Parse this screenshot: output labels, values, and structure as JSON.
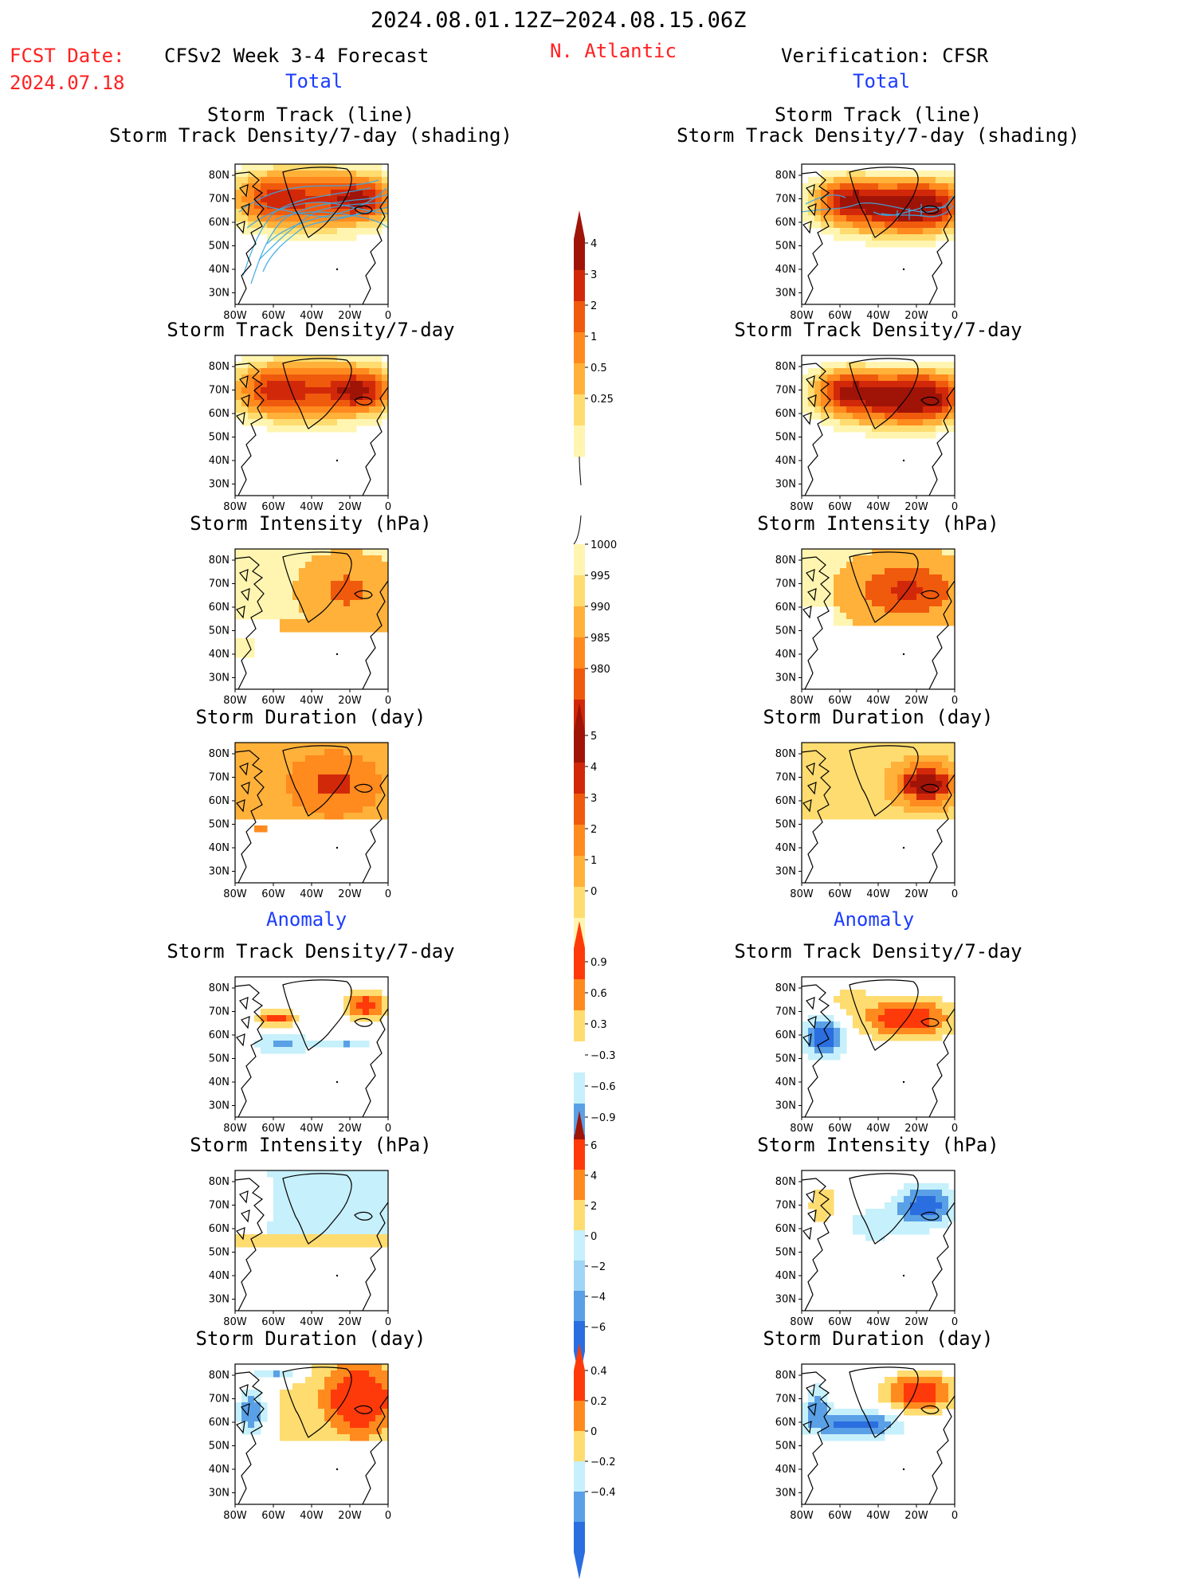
{
  "header": {
    "period": "2024.08.01.12Z−2024.08.15.06Z",
    "region": "N. Atlantic",
    "fcst_label": "FCST Date:",
    "fcst_date": "2024.07.18",
    "model_title": "CFSv2 Week 3-4 Forecast",
    "verification_title": "Verification: CFSR",
    "total_left": "Total",
    "total_right": "Total",
    "anomaly_left": "Anomaly",
    "anomaly_right": "Anomaly"
  },
  "panel_titles": {
    "track_line": "Storm Track (line)",
    "track_shading": "Storm Track Density/7-day (shading)",
    "density": "Storm Track Density/7-day",
    "intensity": "Storm Intensity (hPa)",
    "duration": "Storm Duration (day)"
  },
  "axes": {
    "lat_ticks": [
      "80N",
      "70N",
      "60N",
      "50N",
      "40N",
      "30N"
    ],
    "lon_ticks": [
      "80W",
      "60W",
      "40W",
      "20W",
      "0"
    ]
  },
  "colors": {
    "warm": [
      "#fff5b0",
      "#ffdc70",
      "#ffb13a",
      "#ff8a1e",
      "#f05a0c",
      "#d2280a",
      "#a01408"
    ],
    "orange_max": "#ff3a0a",
    "cool": [
      "#c6f0fb",
      "#9fd6f5",
      "#5aa0e6",
      "#2a6ee0",
      "#1848c8"
    ],
    "track_line": "#3aa8e6"
  },
  "chart_data": [
    {
      "type": "heatmap",
      "name": "Total storm track density",
      "unit": "per 7-day",
      "colorbar_levels": [
        0.25,
        0.5,
        1,
        2,
        3,
        4
      ],
      "panels": [
        {
          "model": "CFSv2 Week 3-4 Forecast",
          "title": "Storm Track (line) / Storm Track Density/7-day (shading)",
          "max_value": 3
        },
        {
          "model": "Verification: CFSR",
          "title": "Storm Track (line) / Storm Track Density/7-day (shading)",
          "max_value": 4
        },
        {
          "model": "CFSv2 Week 3-4 Forecast",
          "title": "Storm Track Density/7-day",
          "max_value": 3
        },
        {
          "model": "Verification: CFSR",
          "title": "Storm Track Density/7-day",
          "max_value": 4
        }
      ]
    },
    {
      "type": "heatmap",
      "name": "Total storm intensity",
      "unit": "hPa",
      "colorbar_levels": [
        1000,
        995,
        990,
        985,
        980
      ],
      "panels": [
        {
          "model": "CFSv2 Week 3-4 Forecast",
          "title": "Storm Intensity (hPa)",
          "min_value": 990
        },
        {
          "model": "Verification: CFSR",
          "title": "Storm Intensity (hPa)",
          "min_value": 985
        }
      ]
    },
    {
      "type": "heatmap",
      "name": "Total storm duration",
      "unit": "day",
      "colorbar_levels": [
        0,
        1,
        2,
        3,
        4,
        5
      ],
      "panels": [
        {
          "model": "CFSv2 Week 3-4 Forecast",
          "title": "Storm Duration (day)",
          "max_value": 4
        },
        {
          "model": "Verification: CFSR",
          "title": "Storm Duration (day)",
          "max_value": 5
        }
      ]
    },
    {
      "type": "heatmap",
      "name": "Anomaly storm track density",
      "unit": "per 7-day",
      "colorbar_levels": [
        0.9,
        0.6,
        0.3,
        -0.3,
        -0.6,
        -0.9
      ],
      "panels": [
        {
          "model": "CFSv2 Week 3-4 Forecast",
          "title": "Storm Track Density/7-day"
        },
        {
          "model": "Verification: CFSR",
          "title": "Storm Track Density/7-day"
        }
      ]
    },
    {
      "type": "heatmap",
      "name": "Anomaly storm intensity",
      "unit": "hPa",
      "colorbar_levels": [
        6,
        4,
        2,
        0,
        -2,
        -4,
        -6
      ],
      "panels": [
        {
          "model": "CFSv2 Week 3-4 Forecast",
          "title": "Storm Intensity (hPa)"
        },
        {
          "model": "Verification: CFSR",
          "title": "Storm Intensity (hPa)"
        }
      ]
    },
    {
      "type": "heatmap",
      "name": "Anomaly storm duration",
      "unit": "day",
      "colorbar_levels": [
        0.4,
        0.2,
        0,
        -0.2,
        -0.4
      ],
      "panels": [
        {
          "model": "CFSv2 Week 3-4 Forecast",
          "title": "Storm Duration (day)"
        },
        {
          "model": "Verification: CFSR",
          "title": "Storm Duration (day)"
        }
      ]
    }
  ],
  "colorbars": [
    {
      "id": "density_total",
      "labels": [
        "4",
        "3",
        "2",
        "1",
        "0.5",
        "0.25"
      ]
    },
    {
      "id": "intensity_total",
      "labels": [
        "1000",
        "995",
        "990",
        "985",
        "980"
      ]
    },
    {
      "id": "duration_total",
      "labels": [
        "5",
        "4",
        "3",
        "2",
        "1",
        "0"
      ]
    },
    {
      "id": "density_anom",
      "labels": [
        "0.9",
        "0.6",
        "0.3",
        "−0.3",
        "−0.6",
        "−0.9"
      ]
    },
    {
      "id": "intensity_anom",
      "labels": [
        "6",
        "4",
        "2",
        "0",
        "−2",
        "−4",
        "−6"
      ]
    },
    {
      "id": "duration_anom",
      "labels": [
        "0.4",
        "0.2",
        "0",
        "−0.2",
        "−0.4"
      ]
    }
  ]
}
